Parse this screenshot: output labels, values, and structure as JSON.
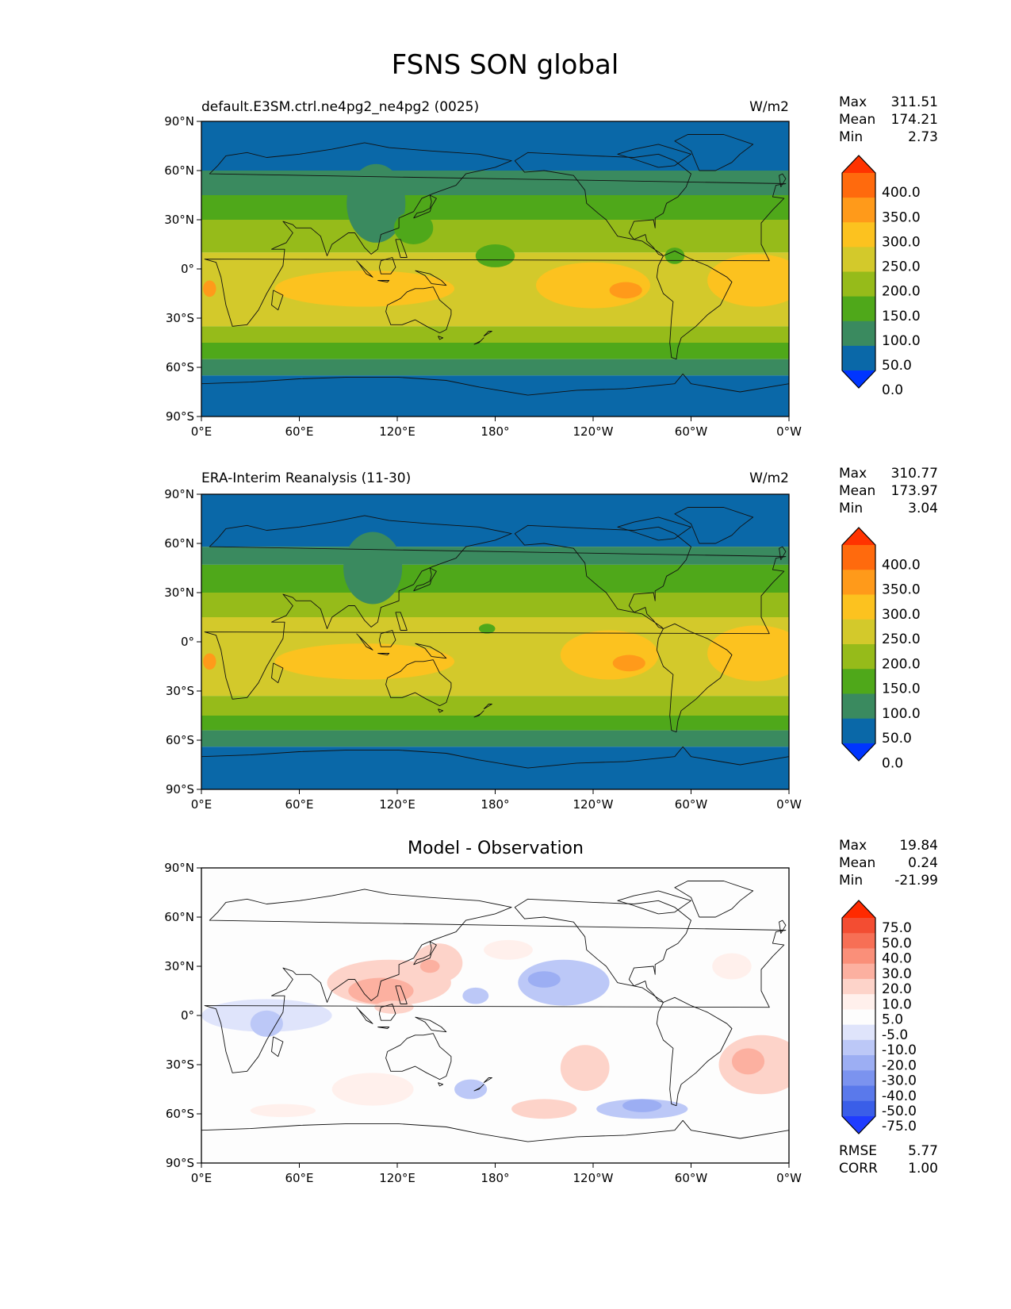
{
  "title": "FSNS SON global",
  "chart_data": [
    {
      "type": "heatmap",
      "title_left": "default.E3SM.ctrl.ne4pg2_ne4pg2 (0025)",
      "title_right": "W/m2",
      "stats": {
        "max_label": "Max",
        "max": "311.51",
        "mean_label": "Mean",
        "mean": "174.21",
        "min_label": "Min",
        "min": "2.73"
      },
      "x_ticks": [
        "0°E",
        "60°E",
        "120°E",
        "180°",
        "120°W",
        "60°W",
        "0°W"
      ],
      "y_ticks": [
        "90°N",
        "60°N",
        "30°N",
        "0°",
        "30°S",
        "60°S",
        "90°S"
      ],
      "xlim": [
        0,
        360
      ],
      "ylim": [
        -90,
        90
      ],
      "levels": [
        "400.0",
        "350.0",
        "300.0",
        "250.0",
        "200.0",
        "150.0",
        "100.0",
        "50.0",
        "0.0"
      ],
      "colors": [
        "#ff3300",
        "#ff6a0d",
        "#ff9a1a",
        "#fcc21f",
        "#d3c92b",
        "#96bb1a",
        "#4fa81a",
        "#3a8a5f",
        "#0a68a8",
        "#0035ff"
      ],
      "bands": [
        [
          90,
          60,
          8
        ],
        [
          60,
          45,
          7
        ],
        [
          45,
          30,
          6
        ],
        [
          30,
          10,
          5
        ],
        [
          10,
          -35,
          4
        ],
        [
          -35,
          -45,
          5
        ],
        [
          -45,
          -55,
          6
        ],
        [
          -55,
          -65,
          7
        ],
        [
          -65,
          -90,
          8
        ]
      ],
      "blobs": [
        [
          107,
          40,
          18,
          24,
          7
        ],
        [
          130,
          25,
          12,
          10,
          6
        ],
        [
          180,
          8,
          12,
          7,
          6
        ],
        [
          290,
          8,
          6,
          5,
          6
        ],
        [
          240,
          -10,
          35,
          14,
          3
        ],
        [
          100,
          -12,
          55,
          11,
          3
        ],
        [
          340,
          -7,
          30,
          16,
          3
        ],
        [
          260,
          -13,
          10,
          5,
          2
        ],
        [
          5,
          -12,
          4,
          5,
          2
        ]
      ]
    },
    {
      "type": "heatmap",
      "title_left": "ERA-Interim Reanalysis (11-30)",
      "title_right": "W/m2",
      "stats": {
        "max_label": "Max",
        "max": "310.77",
        "mean_label": "Mean",
        "mean": "173.97",
        "min_label": "Min",
        "min": "3.04"
      },
      "x_ticks": [
        "0°E",
        "60°E",
        "120°E",
        "180°",
        "120°W",
        "60°W",
        "0°W"
      ],
      "y_ticks": [
        "90°N",
        "60°N",
        "30°N",
        "0°",
        "30°S",
        "60°S",
        "90°S"
      ],
      "xlim": [
        0,
        360
      ],
      "ylim": [
        -90,
        90
      ],
      "levels": [
        "400.0",
        "350.0",
        "300.0",
        "250.0",
        "200.0",
        "150.0",
        "100.0",
        "50.0",
        "0.0"
      ],
      "colors": [
        "#ff3300",
        "#ff6a0d",
        "#ff9a1a",
        "#fcc21f",
        "#d3c92b",
        "#96bb1a",
        "#4fa81a",
        "#3a8a5f",
        "#0a68a8",
        "#0035ff"
      ],
      "bands": [
        [
          90,
          58,
          8
        ],
        [
          58,
          47,
          7
        ],
        [
          47,
          30,
          6
        ],
        [
          30,
          15,
          5
        ],
        [
          15,
          -33,
          4
        ],
        [
          -33,
          -45,
          5
        ],
        [
          -45,
          -54,
          6
        ],
        [
          -54,
          -64,
          7
        ],
        [
          -64,
          -90,
          8
        ]
      ],
      "blobs": [
        [
          105,
          45,
          18,
          22,
          7
        ],
        [
          175,
          8,
          5,
          3,
          6
        ],
        [
          250,
          -8,
          30,
          15,
          3
        ],
        [
          100,
          -12,
          55,
          11,
          3
        ],
        [
          340,
          -7,
          30,
          17,
          3
        ],
        [
          262,
          -13,
          10,
          5,
          2
        ],
        [
          5,
          -12,
          4,
          5,
          2
        ]
      ]
    },
    {
      "type": "heatmap",
      "title": "Model - Observation",
      "stats": {
        "max_label": "Max",
        "max": "19.84",
        "mean_label": "Mean",
        "mean": "0.24",
        "min_label": "Min",
        "min": "-21.99"
      },
      "rmse_label": "RMSE",
      "rmse": "5.77",
      "corr_label": "CORR",
      "corr": "1.00",
      "x_ticks": [
        "0°E",
        "60°E",
        "120°E",
        "180°",
        "120°W",
        "60°W",
        "0°W"
      ],
      "y_ticks": [
        "90°N",
        "60°N",
        "30°N",
        "0°",
        "30°S",
        "60°S",
        "90°S"
      ],
      "xlim": [
        0,
        360
      ],
      "ylim": [
        -90,
        90
      ],
      "levels": [
        "75.0",
        "50.0",
        "40.0",
        "30.0",
        "20.0",
        "10.0",
        "5.0",
        "-5.0",
        "-10.0",
        "-20.0",
        "-30.0",
        "-40.0",
        "-50.0",
        "-75.0"
      ],
      "colors": [
        "#ff2a00",
        "#f34d32",
        "#f76f55",
        "#fa8f79",
        "#fcb0a0",
        "#fdd3c9",
        "#fff0ec",
        "#fdfdfd",
        "#dfe4fb",
        "#bcc8f7",
        "#9caef3",
        "#7b93ef",
        "#5a79eb",
        "#3a5ee8",
        "#1f3cff"
      ],
      "background": 7,
      "blobs": [
        [
          0,
          0,
          0,
          0,
          7
        ],
        [
          115,
          20,
          38,
          14,
          5
        ],
        [
          110,
          15,
          20,
          8,
          4
        ],
        [
          145,
          32,
          15,
          12,
          5
        ],
        [
          140,
          30,
          6,
          4,
          4
        ],
        [
          188,
          40,
          15,
          6,
          6
        ],
        [
          222,
          20,
          28,
          14,
          9
        ],
        [
          210,
          22,
          10,
          5,
          10
        ],
        [
          168,
          12,
          8,
          5,
          9
        ],
        [
          118,
          5,
          12,
          4,
          5
        ],
        [
          40,
          0,
          40,
          10,
          8
        ],
        [
          40,
          -5,
          10,
          8,
          9
        ],
        [
          343,
          -30,
          26,
          18,
          5
        ],
        [
          335,
          -28,
          10,
          8,
          4
        ],
        [
          235,
          -32,
          15,
          14,
          5
        ],
        [
          210,
          -57,
          20,
          6,
          5
        ],
        [
          270,
          -57,
          28,
          6,
          9
        ],
        [
          270,
          -55,
          12,
          4,
          10
        ],
        [
          105,
          -45,
          25,
          10,
          6
        ],
        [
          165,
          -45,
          10,
          6,
          9
        ],
        [
          325,
          30,
          12,
          8,
          6
        ],
        [
          50,
          -58,
          20,
          4,
          6
        ]
      ]
    }
  ]
}
